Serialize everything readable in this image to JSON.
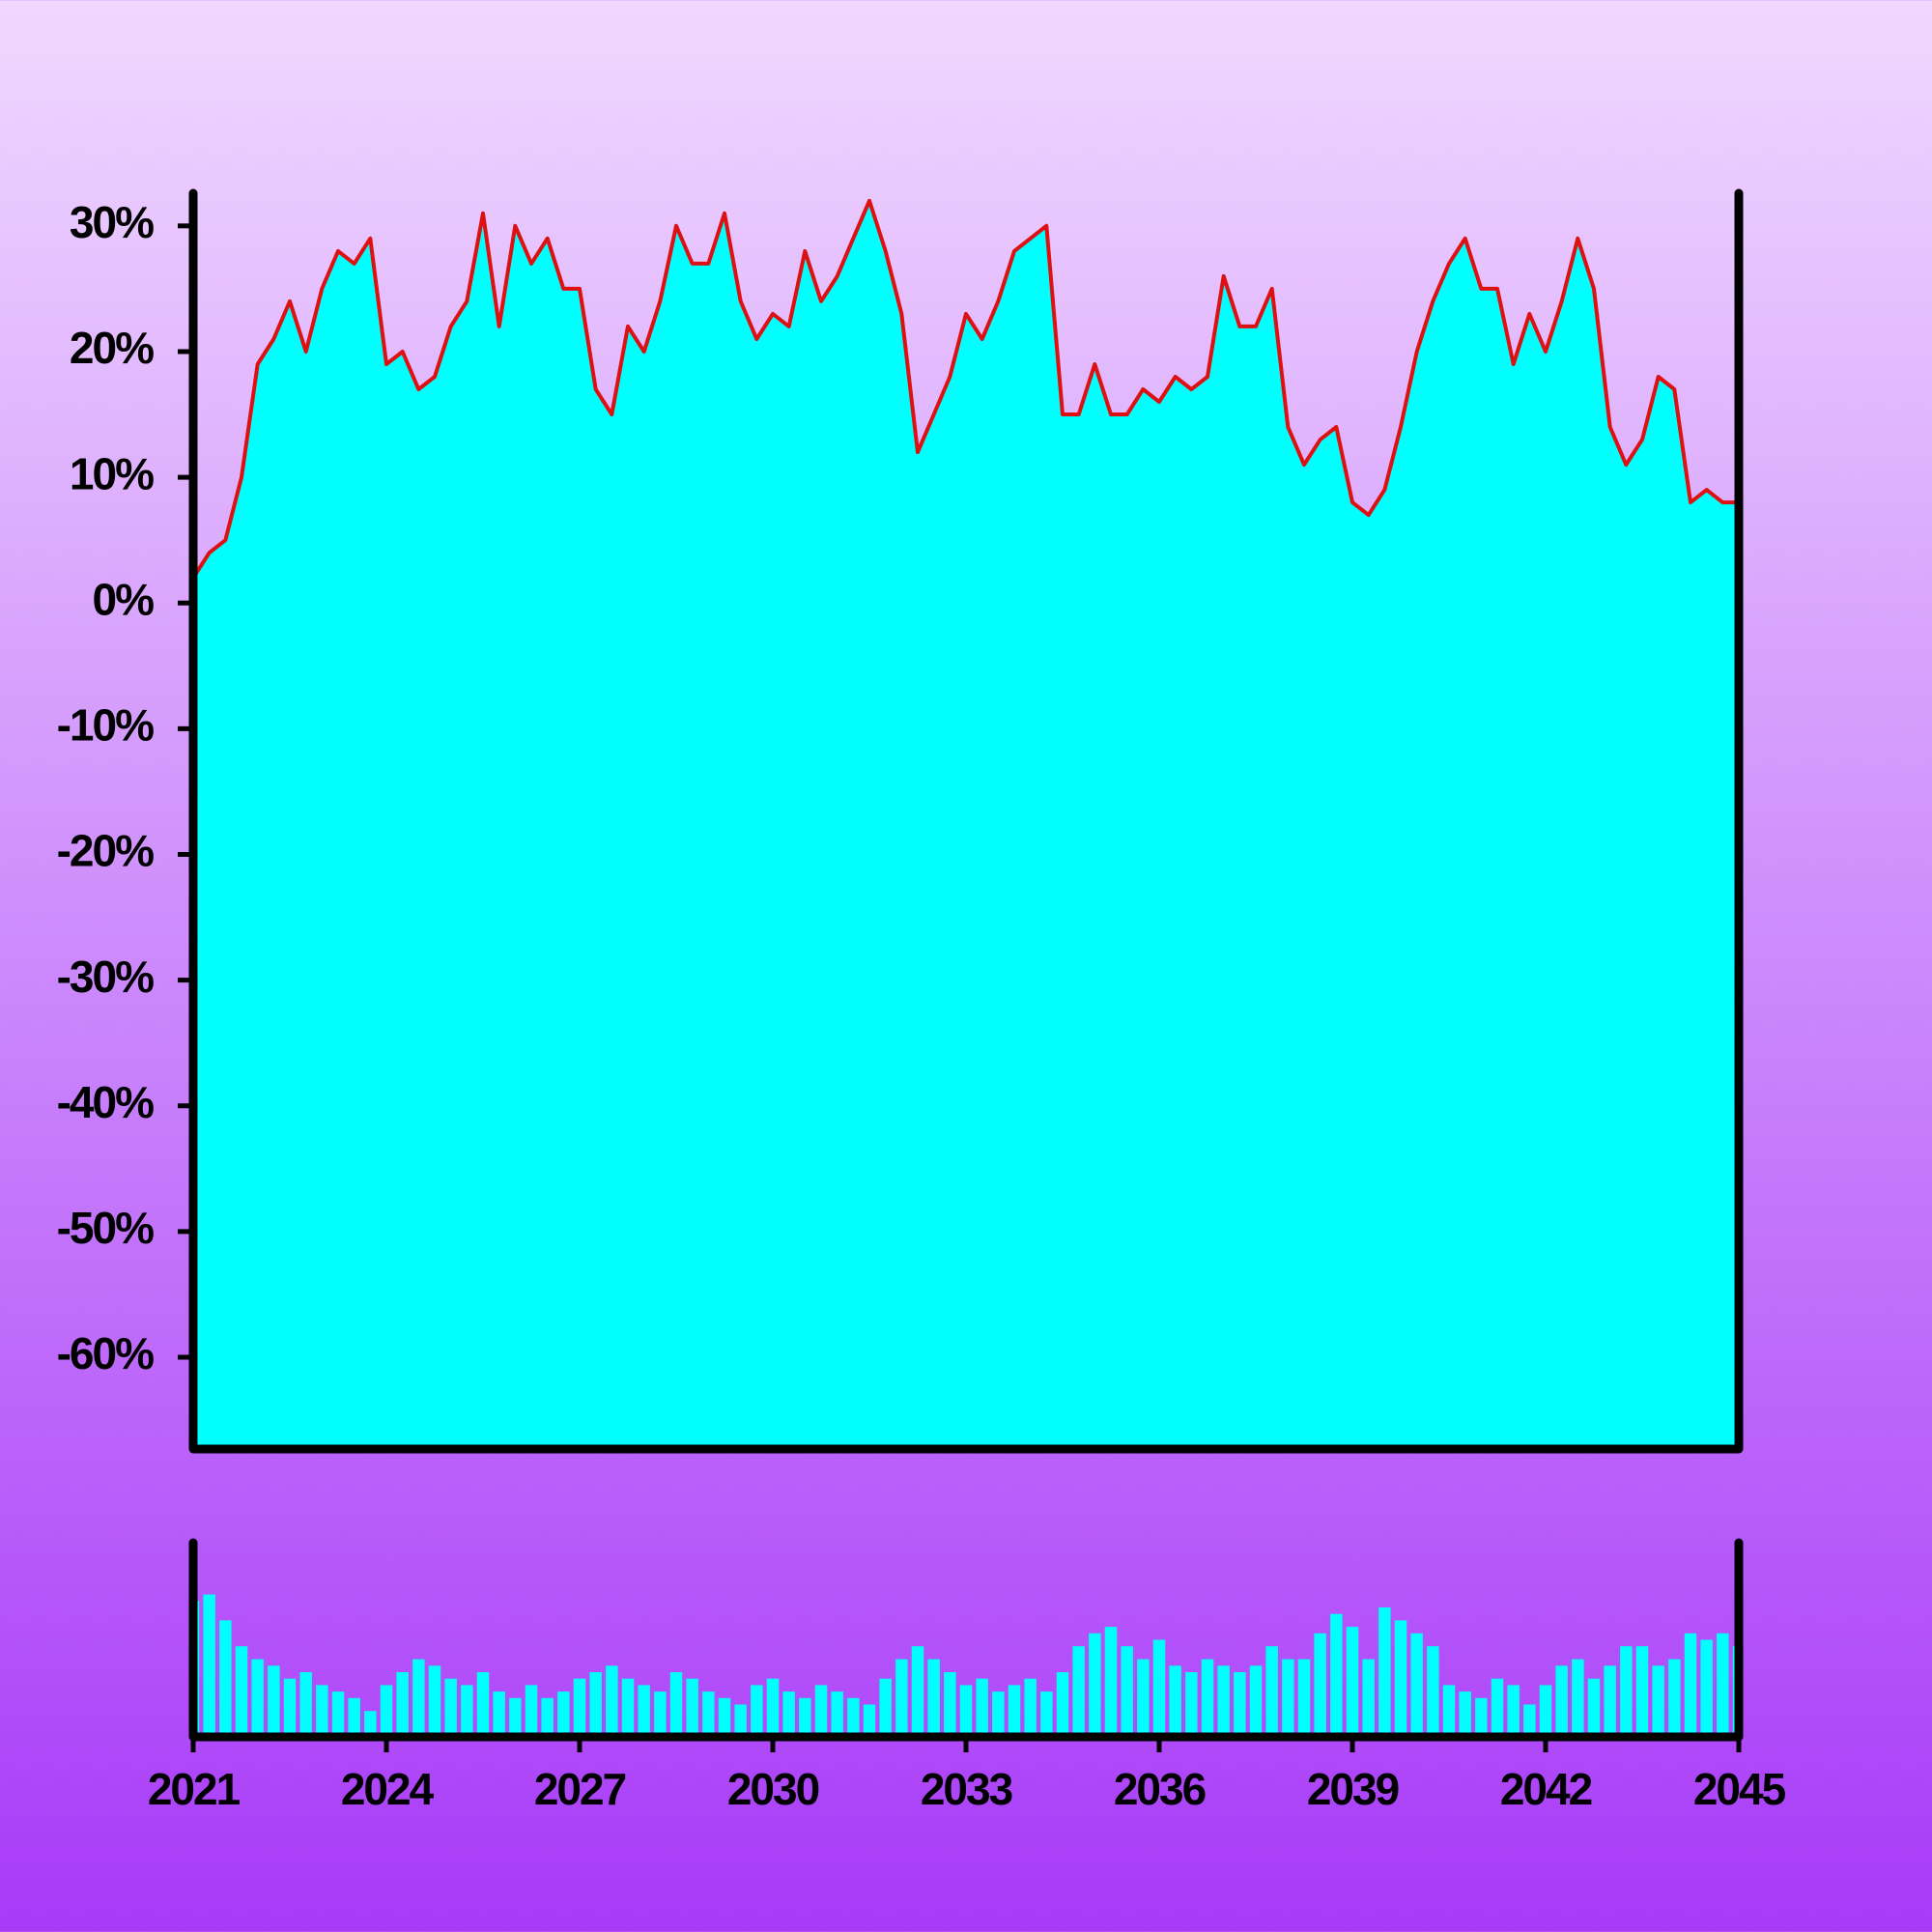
{
  "chart_data": [
    {
      "type": "area",
      "color": "#00ffff",
      "line_color": "#dd1111",
      "x": [
        2021,
        2021.25,
        2021.5,
        2021.75,
        2022,
        2022.25,
        2022.5,
        2022.75,
        2023,
        2023.25,
        2023.5,
        2023.75,
        2024,
        2024.25,
        2024.5,
        2024.75,
        2025,
        2025.25,
        2025.5,
        2025.75,
        2026,
        2026.25,
        2026.5,
        2026.75,
        2027,
        2027.25,
        2027.5,
        2027.75,
        2028,
        2028.25,
        2028.5,
        2028.75,
        2029,
        2029.25,
        2029.5,
        2029.75,
        2030,
        2030.25,
        2030.5,
        2030.75,
        2031,
        2031.25,
        2031.5,
        2031.75,
        2032,
        2032.25,
        2032.5,
        2032.75,
        2033,
        2033.25,
        2033.5,
        2033.75,
        2034,
        2034.25,
        2034.5,
        2034.75,
        2035,
        2035.25,
        2035.5,
        2035.75,
        2036,
        2036.25,
        2036.5,
        2036.75,
        2037,
        2037.25,
        2037.5,
        2037.75,
        2038,
        2038.25,
        2038.5,
        2038.75,
        2039,
        2039.25,
        2039.5,
        2039.75,
        2040,
        2040.25,
        2040.5,
        2040.75,
        2041,
        2041.25,
        2041.5,
        2041.75,
        2042,
        2042.25,
        2042.5,
        2042.75,
        2043,
        2043.25,
        2043.5,
        2043.75,
        2044,
        2044.25,
        2044.5,
        2044.75,
        2045
      ],
      "values": [
        2,
        4,
        5,
        10,
        19,
        21,
        24,
        20,
        25,
        28,
        27,
        29,
        19,
        20,
        17,
        18,
        22,
        24,
        31,
        22,
        30,
        27,
        29,
        25,
        25,
        17,
        15,
        22,
        20,
        24,
        30,
        27,
        27,
        31,
        24,
        21,
        23,
        22,
        28,
        24,
        26,
        29,
        32,
        28,
        23,
        12,
        15,
        18,
        23,
        21,
        24,
        28,
        29,
        30,
        15,
        15,
        19,
        15,
        15,
        17,
        16,
        18,
        17,
        18,
        26,
        22,
        22,
        25,
        14,
        11,
        13,
        14,
        8,
        7,
        9,
        14,
        20,
        24,
        27,
        29,
        25,
        25,
        19,
        23,
        20,
        24,
        29,
        25,
        14,
        11,
        13,
        18,
        17,
        8,
        9,
        8,
        8
      ],
      "xlim": [
        2021,
        2045
      ],
      "ylim": [
        -67.3,
        32.6
      ],
      "yticks": [
        {
          "value": 30,
          "label": "30%"
        },
        {
          "value": 20,
          "label": "20%"
        },
        {
          "value": 10,
          "label": "10%"
        },
        {
          "value": 0,
          "label": "0%"
        },
        {
          "value": -10,
          "label": "-10%"
        },
        {
          "value": -20,
          "label": "-20%"
        },
        {
          "value": -30,
          "label": "-30%"
        },
        {
          "value": -40,
          "label": "-40%"
        },
        {
          "value": -50,
          "label": "-50%"
        },
        {
          "value": -60,
          "label": "-60%"
        }
      ]
    },
    {
      "type": "bar",
      "color": "#00ffff",
      "x": [
        2021,
        2021.25,
        2021.5,
        2021.75,
        2022,
        2022.25,
        2022.5,
        2022.75,
        2023,
        2023.25,
        2023.5,
        2023.75,
        2024,
        2024.25,
        2024.5,
        2024.75,
        2025,
        2025.25,
        2025.5,
        2025.75,
        2026,
        2026.25,
        2026.5,
        2026.75,
        2027,
        2027.25,
        2027.5,
        2027.75,
        2028,
        2028.25,
        2028.5,
        2028.75,
        2029,
        2029.25,
        2029.5,
        2029.75,
        2030,
        2030.25,
        2030.5,
        2030.75,
        2031,
        2031.25,
        2031.5,
        2031.75,
        2032,
        2032.25,
        2032.5,
        2032.75,
        2033,
        2033.25,
        2033.5,
        2033.75,
        2034,
        2034.25,
        2034.5,
        2034.75,
        2035,
        2035.25,
        2035.5,
        2035.75,
        2036,
        2036.25,
        2036.5,
        2036.75,
        2037,
        2037.25,
        2037.5,
        2037.75,
        2038,
        2038.25,
        2038.5,
        2038.75,
        2039,
        2039.25,
        2039.5,
        2039.75,
        2040,
        2040.25,
        2040.5,
        2040.75,
        2041,
        2041.25,
        2041.5,
        2041.75,
        2042,
        2042.25,
        2042.5,
        2042.75,
        2043,
        2043.25,
        2043.5,
        2043.75,
        2044,
        2044.25,
        2044.5,
        2044.75,
        2045
      ],
      "values": [
        105,
        110,
        90,
        70,
        60,
        55,
        45,
        50,
        40,
        35,
        30,
        20,
        40,
        50,
        60,
        55,
        45,
        40,
        50,
        35,
        30,
        40,
        30,
        35,
        45,
        50,
        55,
        45,
        40,
        35,
        50,
        45,
        35,
        30,
        25,
        40,
        45,
        35,
        30,
        40,
        35,
        30,
        25,
        45,
        60,
        70,
        60,
        50,
        40,
        45,
        35,
        40,
        45,
        35,
        50,
        70,
        80,
        85,
        70,
        60,
        75,
        55,
        50,
        60,
        55,
        50,
        55,
        70,
        60,
        60,
        80,
        95,
        85,
        60,
        100,
        90,
        80,
        70,
        40,
        35,
        30,
        45,
        40,
        25,
        40,
        55,
        60,
        45,
        55,
        70,
        70,
        55,
        60,
        80,
        75,
        80,
        70
      ],
      "xlim": [
        2021,
        2045
      ],
      "ylim": [
        0,
        150
      ],
      "xticks": [
        2021,
        2024,
        2027,
        2030,
        2033,
        2036,
        2039,
        2042,
        2045
      ]
    }
  ]
}
